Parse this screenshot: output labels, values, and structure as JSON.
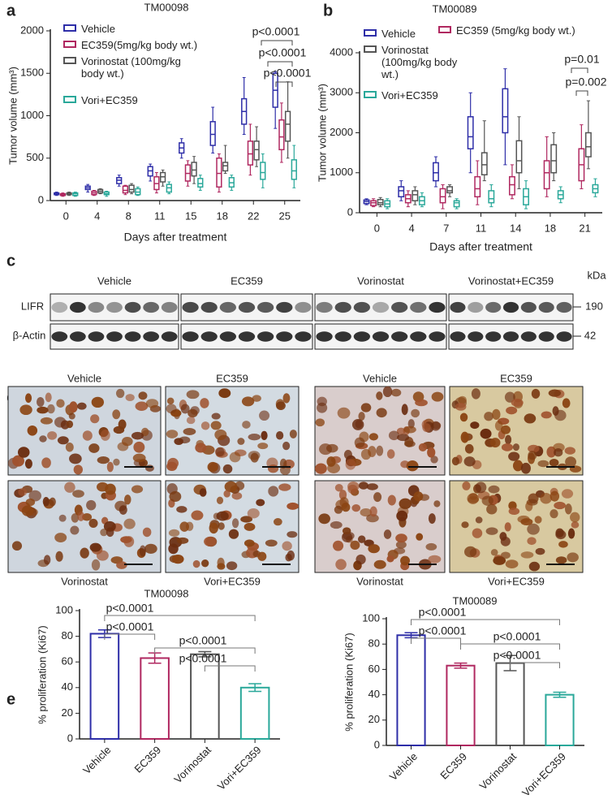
{
  "chart_data": [
    {
      "type": "box",
      "title": "TM00098",
      "x_label": "Days after treatment",
      "y_label": "Tumor volume (mm³)",
      "categories": [
        "0",
        "4",
        "8",
        "11",
        "15",
        "18",
        "22",
        "25"
      ],
      "ylim": [
        0,
        2000
      ],
      "yticks": [
        0,
        500,
        1000,
        1500,
        2000
      ],
      "series": [
        {
          "name": "Vehicle",
          "color": "#2e2ea8",
          "min": [
            60,
            100,
            170,
            230,
            500,
            560,
            780,
            850
          ],
          "q1": [
            70,
            130,
            200,
            290,
            560,
            650,
            900,
            1100
          ],
          "median": [
            80,
            150,
            240,
            350,
            620,
            780,
            1050,
            1300
          ],
          "q3": [
            90,
            170,
            270,
            400,
            680,
            930,
            1200,
            1500
          ],
          "max": [
            100,
            190,
            300,
            430,
            730,
            1100,
            1450,
            1520
          ]
        },
        {
          "name": "EC359(5mg/kg body wt.)",
          "color": "#b02860",
          "min": [
            50,
            60,
            70,
            90,
            170,
            100,
            300,
            450
          ],
          "q1": [
            60,
            70,
            90,
            130,
            230,
            160,
            420,
            600
          ],
          "median": [
            70,
            90,
            120,
            200,
            320,
            320,
            550,
            750
          ],
          "q3": [
            80,
            110,
            170,
            280,
            420,
            500,
            700,
            950
          ],
          "max": [
            90,
            120,
            180,
            330,
            470,
            550,
            900,
            1150
          ]
        },
        {
          "name": "Vorinostat (100mg/kg body wt.)",
          "color": "#555555",
          "min": [
            60,
            80,
            80,
            170,
            200,
            320,
            400,
            500
          ],
          "q1": [
            70,
            90,
            100,
            220,
            290,
            350,
            480,
            700
          ],
          "median": [
            80,
            110,
            130,
            280,
            360,
            410,
            600,
            900
          ],
          "q3": [
            90,
            130,
            180,
            330,
            450,
            450,
            700,
            1050
          ],
          "max": [
            100,
            140,
            200,
            360,
            520,
            650,
            870,
            1400
          ]
        },
        {
          "name": "Vori+EC359",
          "color": "#2aa89a",
          "min": [
            50,
            50,
            60,
            80,
            120,
            120,
            150,
            150
          ],
          "q1": [
            60,
            70,
            70,
            100,
            160,
            160,
            250,
            250
          ],
          "median": [
            80,
            80,
            100,
            150,
            200,
            210,
            330,
            350
          ],
          "q3": [
            90,
            100,
            140,
            190,
            260,
            270,
            450,
            480
          ],
          "max": [
            100,
            110,
            160,
            220,
            300,
            300,
            550,
            650
          ]
        }
      ],
      "annotations": [
        "p<0.0001",
        "p<0.0001",
        "p<0.0001"
      ]
    },
    {
      "type": "box",
      "title": "TM00089",
      "x_label": "Days after treatment",
      "y_label": "Tumor volume (mm³)",
      "categories": [
        "0",
        "4",
        "7",
        "11",
        "14",
        "18",
        "21"
      ],
      "ylim": [
        0,
        4000
      ],
      "yticks": [
        0,
        1000,
        2000,
        3000,
        4000
      ],
      "series": [
        {
          "name": "Vehicle",
          "color": "#2e2ea8",
          "min": [
            200,
            300,
            650,
            1000,
            1200,
            null,
            null
          ],
          "q1": [
            230,
            400,
            800,
            1600,
            2000,
            null,
            null
          ],
          "median": [
            280,
            550,
            1000,
            1900,
            2400,
            null,
            null
          ],
          "q3": [
            320,
            650,
            1250,
            2400,
            3100,
            null,
            null
          ],
          "max": [
            350,
            800,
            1400,
            3000,
            3600,
            null,
            null
          ]
        },
        {
          "name": "EC359 (5mg/kg body wt.)",
          "color": "#b02860",
          "min": [
            150,
            150,
            100,
            200,
            350,
            400,
            600
          ],
          "q1": [
            180,
            250,
            250,
            400,
            450,
            600,
            800
          ],
          "median": [
            250,
            350,
            400,
            600,
            700,
            1000,
            1200
          ],
          "q3": [
            300,
            450,
            600,
            900,
            900,
            1300,
            1600
          ],
          "max": [
            350,
            550,
            700,
            1300,
            1200,
            1900,
            2200
          ]
        },
        {
          "name": "Vorinostat (100mg/kg body wt.)",
          "color": "#555555",
          "min": [
            150,
            200,
            400,
            800,
            600,
            800,
            1100
          ],
          "q1": [
            200,
            300,
            500,
            950,
            1000,
            1000,
            1400
          ],
          "median": [
            250,
            450,
            550,
            1200,
            1300,
            1300,
            1650
          ],
          "q3": [
            330,
            550,
            650,
            1500,
            1800,
            1700,
            2000
          ],
          "max": [
            380,
            650,
            700,
            2300,
            2400,
            2000,
            2800
          ]
        },
        {
          "name": "Vori+EC359",
          "color": "#2aa89a",
          "min": [
            100,
            150,
            100,
            150,
            100,
            250,
            400
          ],
          "q1": [
            150,
            200,
            150,
            250,
            200,
            350,
            500
          ],
          "median": [
            220,
            300,
            250,
            350,
            400,
            450,
            600
          ],
          "q3": [
            300,
            400,
            300,
            550,
            600,
            550,
            700
          ],
          "max": [
            350,
            500,
            350,
            700,
            800,
            650,
            850
          ]
        }
      ],
      "annotations": [
        "p=0.01",
        "p=0.002"
      ]
    },
    {
      "type": "bar",
      "title": "TM00098",
      "y_label": "% proliferation (Ki67)",
      "categories": [
        "Vehicle",
        "EC359",
        "Vorinostat",
        "Vori+EC359"
      ],
      "values": [
        82,
        63,
        66,
        40
      ],
      "errors": [
        3,
        4,
        2,
        3
      ],
      "colors": [
        "#2e2ea8",
        "#b02860",
        "#555555",
        "#2aa89a"
      ],
      "ylim": [
        0,
        100
      ],
      "yticks": [
        0,
        20,
        40,
        60,
        80,
        100
      ],
      "annotations": [
        "p<0.0001",
        "p<0.0001",
        "p<0.0001",
        "p<0.0001"
      ]
    },
    {
      "type": "bar",
      "title": "TM00089",
      "y_label": "% proliferation (Ki67)",
      "categories": [
        "Vehicle",
        "EC359",
        "Vorinostat",
        "Vori+EC359"
      ],
      "values": [
        87,
        63,
        65,
        40
      ],
      "errors": [
        2,
        2,
        6,
        2
      ],
      "colors": [
        "#2e2ea8",
        "#b02860",
        "#555555",
        "#2aa89a"
      ],
      "ylim": [
        0,
        100
      ],
      "yticks": [
        0,
        20,
        40,
        60,
        80,
        100
      ],
      "annotations": [
        "p<0.0001",
        "p<0.0001",
        "p<0.0001",
        "p<0.0001"
      ]
    }
  ],
  "panels": {
    "labels": [
      "a",
      "b",
      "c",
      "d",
      "e"
    ],
    "blot": {
      "groups": [
        "Vehicle",
        "EC359",
        "Vorinostat",
        "Vorinostat+EC359"
      ],
      "rows": [
        "LIFR",
        "β-Actin"
      ],
      "unit": "kDa",
      "sizes": [
        190,
        42
      ]
    },
    "ihc": {
      "top": [
        "Vehicle",
        "EC359",
        "Vehicle",
        "EC359"
      ],
      "bottom": [
        "Vorinostat",
        "Vori+EC359",
        "Vorinostat",
        "Vori+EC359"
      ]
    }
  }
}
